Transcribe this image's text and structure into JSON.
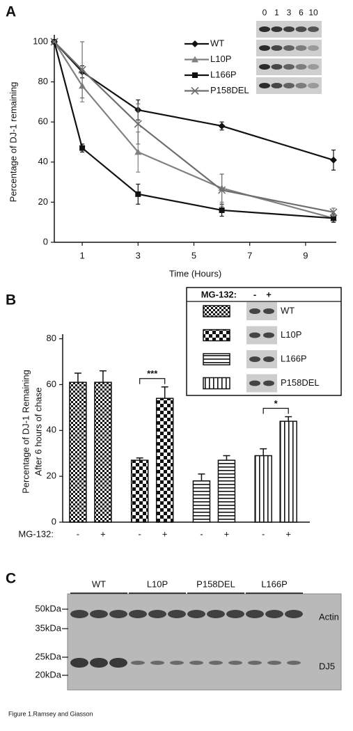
{
  "panel_labels": [
    "A",
    "B",
    "C"
  ],
  "chart_data": [
    {
      "type": "line",
      "x_label": "Time (Hours)",
      "y_label": "Percentage of DJ-1 remaining",
      "x": [
        0,
        1,
        3,
        6,
        10
      ],
      "xlim": [
        0,
        10.1
      ],
      "xticks": [
        1,
        3,
        5,
        7,
        9
      ],
      "ylim": [
        0,
        100
      ],
      "yticks": [
        0,
        20,
        40,
        60,
        80,
        100
      ],
      "series": [
        {
          "name": "WT",
          "color": "#111111",
          "marker": "diamond",
          "values": [
            100,
            85,
            66,
            58,
            41
          ],
          "errors": [
            0,
            3,
            5,
            2,
            5
          ]
        },
        {
          "name": "L10P",
          "color": "#808080",
          "marker": "triangle",
          "values": [
            100,
            78,
            45,
            27,
            12
          ],
          "errors": [
            0,
            8,
            10,
            7,
            2
          ]
        },
        {
          "name": "L166P",
          "color": "#111111",
          "marker": "square",
          "values": [
            100,
            47,
            24,
            16,
            12
          ],
          "errors": [
            0,
            2,
            5,
            3,
            2
          ]
        },
        {
          "name": "P158DEL",
          "color": "#6e6e6e",
          "marker": "x",
          "values": [
            100,
            86,
            59,
            26,
            15
          ],
          "errors": [
            0,
            14,
            10,
            8,
            2
          ]
        }
      ],
      "inset_lanes": [
        "0",
        "1",
        "3",
        "6",
        "10"
      ]
    },
    {
      "type": "bar",
      "y_label": [
        "Percentage of DJ-1 Remaining",
        "After 6 hours of chase"
      ],
      "category_label": "MG-132:",
      "categories": [
        "-",
        "+"
      ],
      "ylim": [
        0,
        82
      ],
      "yticks": [
        0,
        20,
        40,
        60,
        80
      ],
      "series": [
        {
          "name": "WT",
          "pattern": "checker-fine",
          "values": [
            61,
            61
          ],
          "errors": [
            4,
            5
          ]
        },
        {
          "name": "L10P",
          "pattern": "checker-coarse",
          "values": [
            27,
            54
          ],
          "errors": [
            1,
            5
          ],
          "significance": "***"
        },
        {
          "name": "L166P",
          "pattern": "hlines",
          "values": [
            18,
            27
          ],
          "errors": [
            3,
            2
          ]
        },
        {
          "name": "P158DEL",
          "pattern": "vlines",
          "values": [
            29,
            44
          ],
          "errors": [
            3,
            2
          ],
          "significance": "*"
        }
      ]
    }
  ],
  "blot": {
    "groups": [
      "WT",
      "L10P",
      "P158DEL",
      "L166P"
    ],
    "markers": [
      "50kDa",
      "35kDa",
      "25kDa",
      "20kDa"
    ],
    "bands": [
      "Actin",
      "DJ5"
    ]
  },
  "caption": "Figure 1.Ramsey and Giasson"
}
